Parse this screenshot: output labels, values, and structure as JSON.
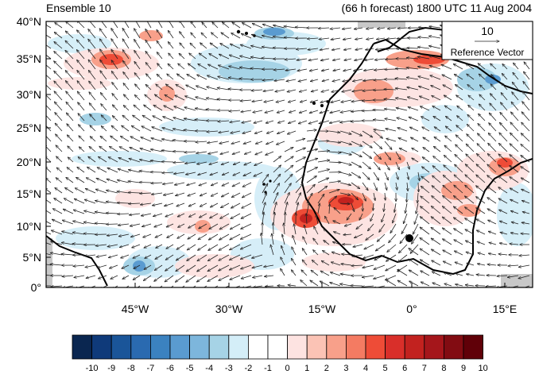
{
  "title": {
    "left": "Ensemble 10",
    "right": "(66 h forecast) 1800 UTC 11 Aug 2004"
  },
  "map": {
    "lat_ticks": [
      "40°N",
      "35°N",
      "30°N",
      "25°N",
      "20°N",
      "15°N",
      "10°N",
      "5°N",
      "0°"
    ],
    "lon_ticks": [
      "45°W",
      "30°W",
      "15°W",
      "0°",
      "15°E"
    ],
    "reference_vector": {
      "value": "10",
      "label": "Reference Vector"
    }
  },
  "colorbar": {
    "labels": [
      "-10",
      "-9",
      "-8",
      "-7",
      "-6",
      "-5",
      "-4",
      "-3",
      "-2",
      "-1",
      "0",
      "1",
      "2",
      "3",
      "4",
      "5",
      "6",
      "7",
      "8",
      "9",
      "10"
    ],
    "colors": [
      "#0a2650",
      "#0f3a7a",
      "#1a5599",
      "#2a6ab0",
      "#3b82c0",
      "#5a9bd0",
      "#7db6dc",
      "#a6d3e6",
      "#d4eef8",
      "#ffffff",
      "#ffffff",
      "#fde3e1",
      "#fbc3b5",
      "#f8a08a",
      "#f47b62",
      "#ee4c37",
      "#d92f2a",
      "#c2221f",
      "#a5161b",
      "#820c12",
      "#600008"
    ]
  }
}
